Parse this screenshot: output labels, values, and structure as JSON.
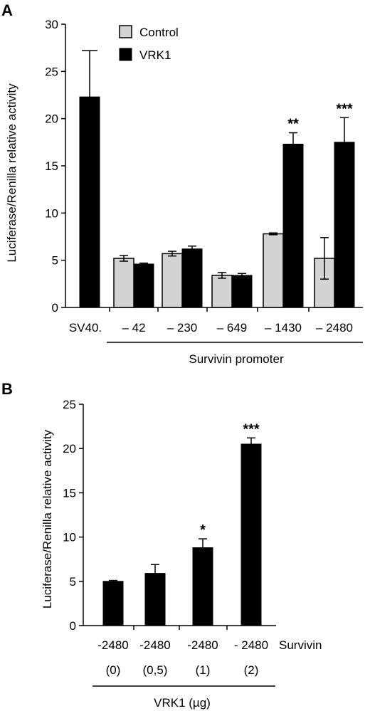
{
  "chart_data": [
    {
      "panel_label": "A",
      "type": "bar",
      "ylabel": "Luciferase/Renilla relative activity",
      "ylim": [
        0,
        30
      ],
      "yticks": [
        0,
        5,
        10,
        15,
        20,
        25,
        30
      ],
      "categories": [
        "SV40.",
        "– 42",
        "– 230",
        "– 649",
        "– 1430",
        "– 2480"
      ],
      "group_label": "Survivin promoter",
      "legend": {
        "placement": "top-left",
        "entries": [
          "Control",
          "VRK1"
        ]
      },
      "colors": {
        "Control": "#d3d3d3",
        "VRK1": "#000000"
      },
      "series": [
        {
          "name": "Control",
          "values": [
            null,
            5.2,
            5.7,
            3.4,
            7.8,
            5.2
          ],
          "errors": [
            null,
            0.3,
            0.25,
            0.3,
            0.1,
            2.2
          ]
        },
        {
          "name": "VRK1",
          "values": [
            22.3,
            4.6,
            6.2,
            3.4,
            17.3,
            17.5
          ],
          "errors": [
            4.9,
            0.1,
            0.3,
            0.2,
            1.2,
            2.6
          ]
        }
      ],
      "annotations": [
        {
          "category": "– 1430",
          "series": "VRK1",
          "text": "**"
        },
        {
          "category": "– 2480",
          "series": "VRK1",
          "text": "***"
        }
      ]
    },
    {
      "panel_label": "B",
      "type": "bar",
      "ylabel": "Luciferase/Renilla relative activity",
      "ylim": [
        0,
        25
      ],
      "yticks": [
        0,
        5,
        10,
        15,
        20,
        25
      ],
      "categories": [
        "-2480",
        "-2480",
        "-2480",
        "- 2480"
      ],
      "sublabels": [
        "(0)",
        "(0,5)",
        "(1)",
        "(2)"
      ],
      "row_label": "Survivin",
      "group_label": "VRK1 (µg)",
      "colors": {
        "bar": "#000000"
      },
      "values": [
        5.0,
        5.9,
        8.8,
        20.5
      ],
      "errors": [
        0.1,
        1.0,
        1.0,
        0.7
      ],
      "annotations": [
        {
          "index": 2,
          "text": "*"
        },
        {
          "index": 3,
          "text": "***"
        }
      ]
    }
  ]
}
